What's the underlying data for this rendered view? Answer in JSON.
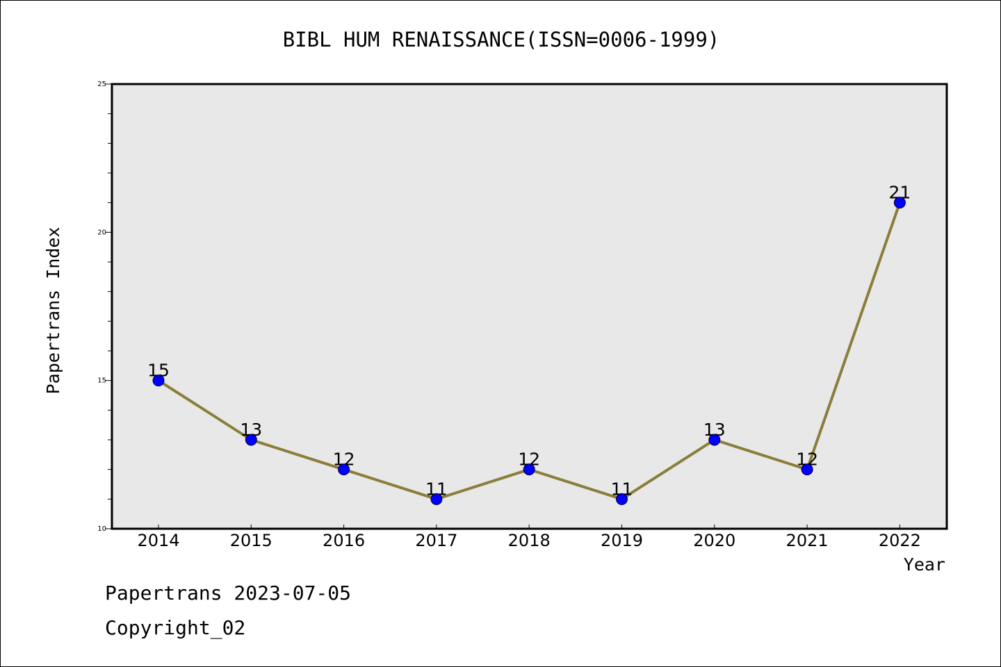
{
  "chart_data": {
    "type": "line",
    "title": "BIBL HUM RENAISSANCE(ISSN=0006-1999)",
    "xlabel": "Year",
    "ylabel": "Papertrans Index",
    "categories": [
      "2014",
      "2015",
      "2016",
      "2017",
      "2018",
      "2019",
      "2020",
      "2021",
      "2022"
    ],
    "values": [
      15,
      13,
      12,
      11,
      12,
      11,
      13,
      12,
      21
    ],
    "data_labels": [
      "15",
      "13",
      "12",
      "11",
      "12",
      "11",
      "13",
      "12",
      "21"
    ],
    "ylim": [
      10,
      25
    ],
    "yticks": [
      10,
      15,
      20,
      25
    ],
    "ytick_labels": [
      "10",
      "15",
      "20",
      "25"
    ],
    "grid": false,
    "legend": "none",
    "colors": {
      "line": "#8B7D3A",
      "marker": "#0000FF",
      "plot_background": "#E8E8E8"
    }
  },
  "footer": {
    "line1": "Papertrans 2023-07-05",
    "line2": "Copyright_02"
  }
}
